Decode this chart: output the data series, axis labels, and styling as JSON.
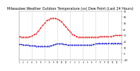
{
  "title": "Milwaukee Weather Outdoor Temperature (vs) Dew Point (Last 24 Hours)",
  "title_fontsize": 3.5,
  "bg_color": "#ffffff",
  "plot_bg": "#ffffff",
  "grid_color": "#aaaaaa",
  "temp_color": "#dd0000",
  "dew_color": "#0000cc",
  "ylim": [
    -10,
    70
  ],
  "yticks": [
    -10,
    0,
    10,
    20,
    30,
    40,
    50,
    60,
    70
  ],
  "num_points": 97,
  "x_gridlines": [
    0,
    12,
    24,
    36,
    48,
    60,
    72,
    84,
    96
  ],
  "temp_values": [
    28,
    28,
    27,
    27,
    27,
    27,
    27,
    27,
    27,
    27,
    28,
    28,
    29,
    30,
    31,
    32,
    33,
    35,
    37,
    39,
    42,
    44,
    46,
    48,
    50,
    52,
    54,
    55,
    56,
    57,
    58,
    58,
    58,
    58,
    58,
    57,
    57,
    56,
    55,
    54,
    52,
    50,
    48,
    46,
    44,
    42,
    40,
    38,
    36,
    34,
    32,
    31,
    30,
    29,
    28,
    28,
    27,
    27,
    27,
    27,
    27,
    27,
    27,
    27,
    27,
    27,
    27,
    27,
    27,
    27,
    27,
    27,
    27,
    27,
    27,
    27,
    28,
    28,
    28,
    28,
    28,
    28,
    28,
    28,
    28,
    28,
    28,
    29,
    29,
    29,
    30,
    30,
    30,
    30,
    30,
    30,
    30
  ],
  "dew_values": [
    15,
    15,
    15,
    15,
    14,
    14,
    14,
    14,
    14,
    14,
    13,
    13,
    13,
    13,
    13,
    13,
    12,
    12,
    12,
    12,
    12,
    12,
    12,
    12,
    12,
    12,
    12,
    12,
    12,
    13,
    13,
    14,
    14,
    15,
    15,
    16,
    16,
    16,
    16,
    16,
    16,
    16,
    15,
    15,
    15,
    14,
    14,
    14,
    14,
    14,
    14,
    14,
    14,
    14,
    14,
    14,
    14,
    14,
    14,
    14,
    14,
    14,
    14,
    14,
    14,
    14,
    14,
    14,
    14,
    15,
    15,
    15,
    16,
    16,
    17,
    17,
    17,
    17,
    17,
    17,
    17,
    17,
    17,
    17,
    17,
    17,
    17,
    17,
    17,
    17,
    17,
    17,
    17,
    17,
    17,
    17,
    17
  ]
}
